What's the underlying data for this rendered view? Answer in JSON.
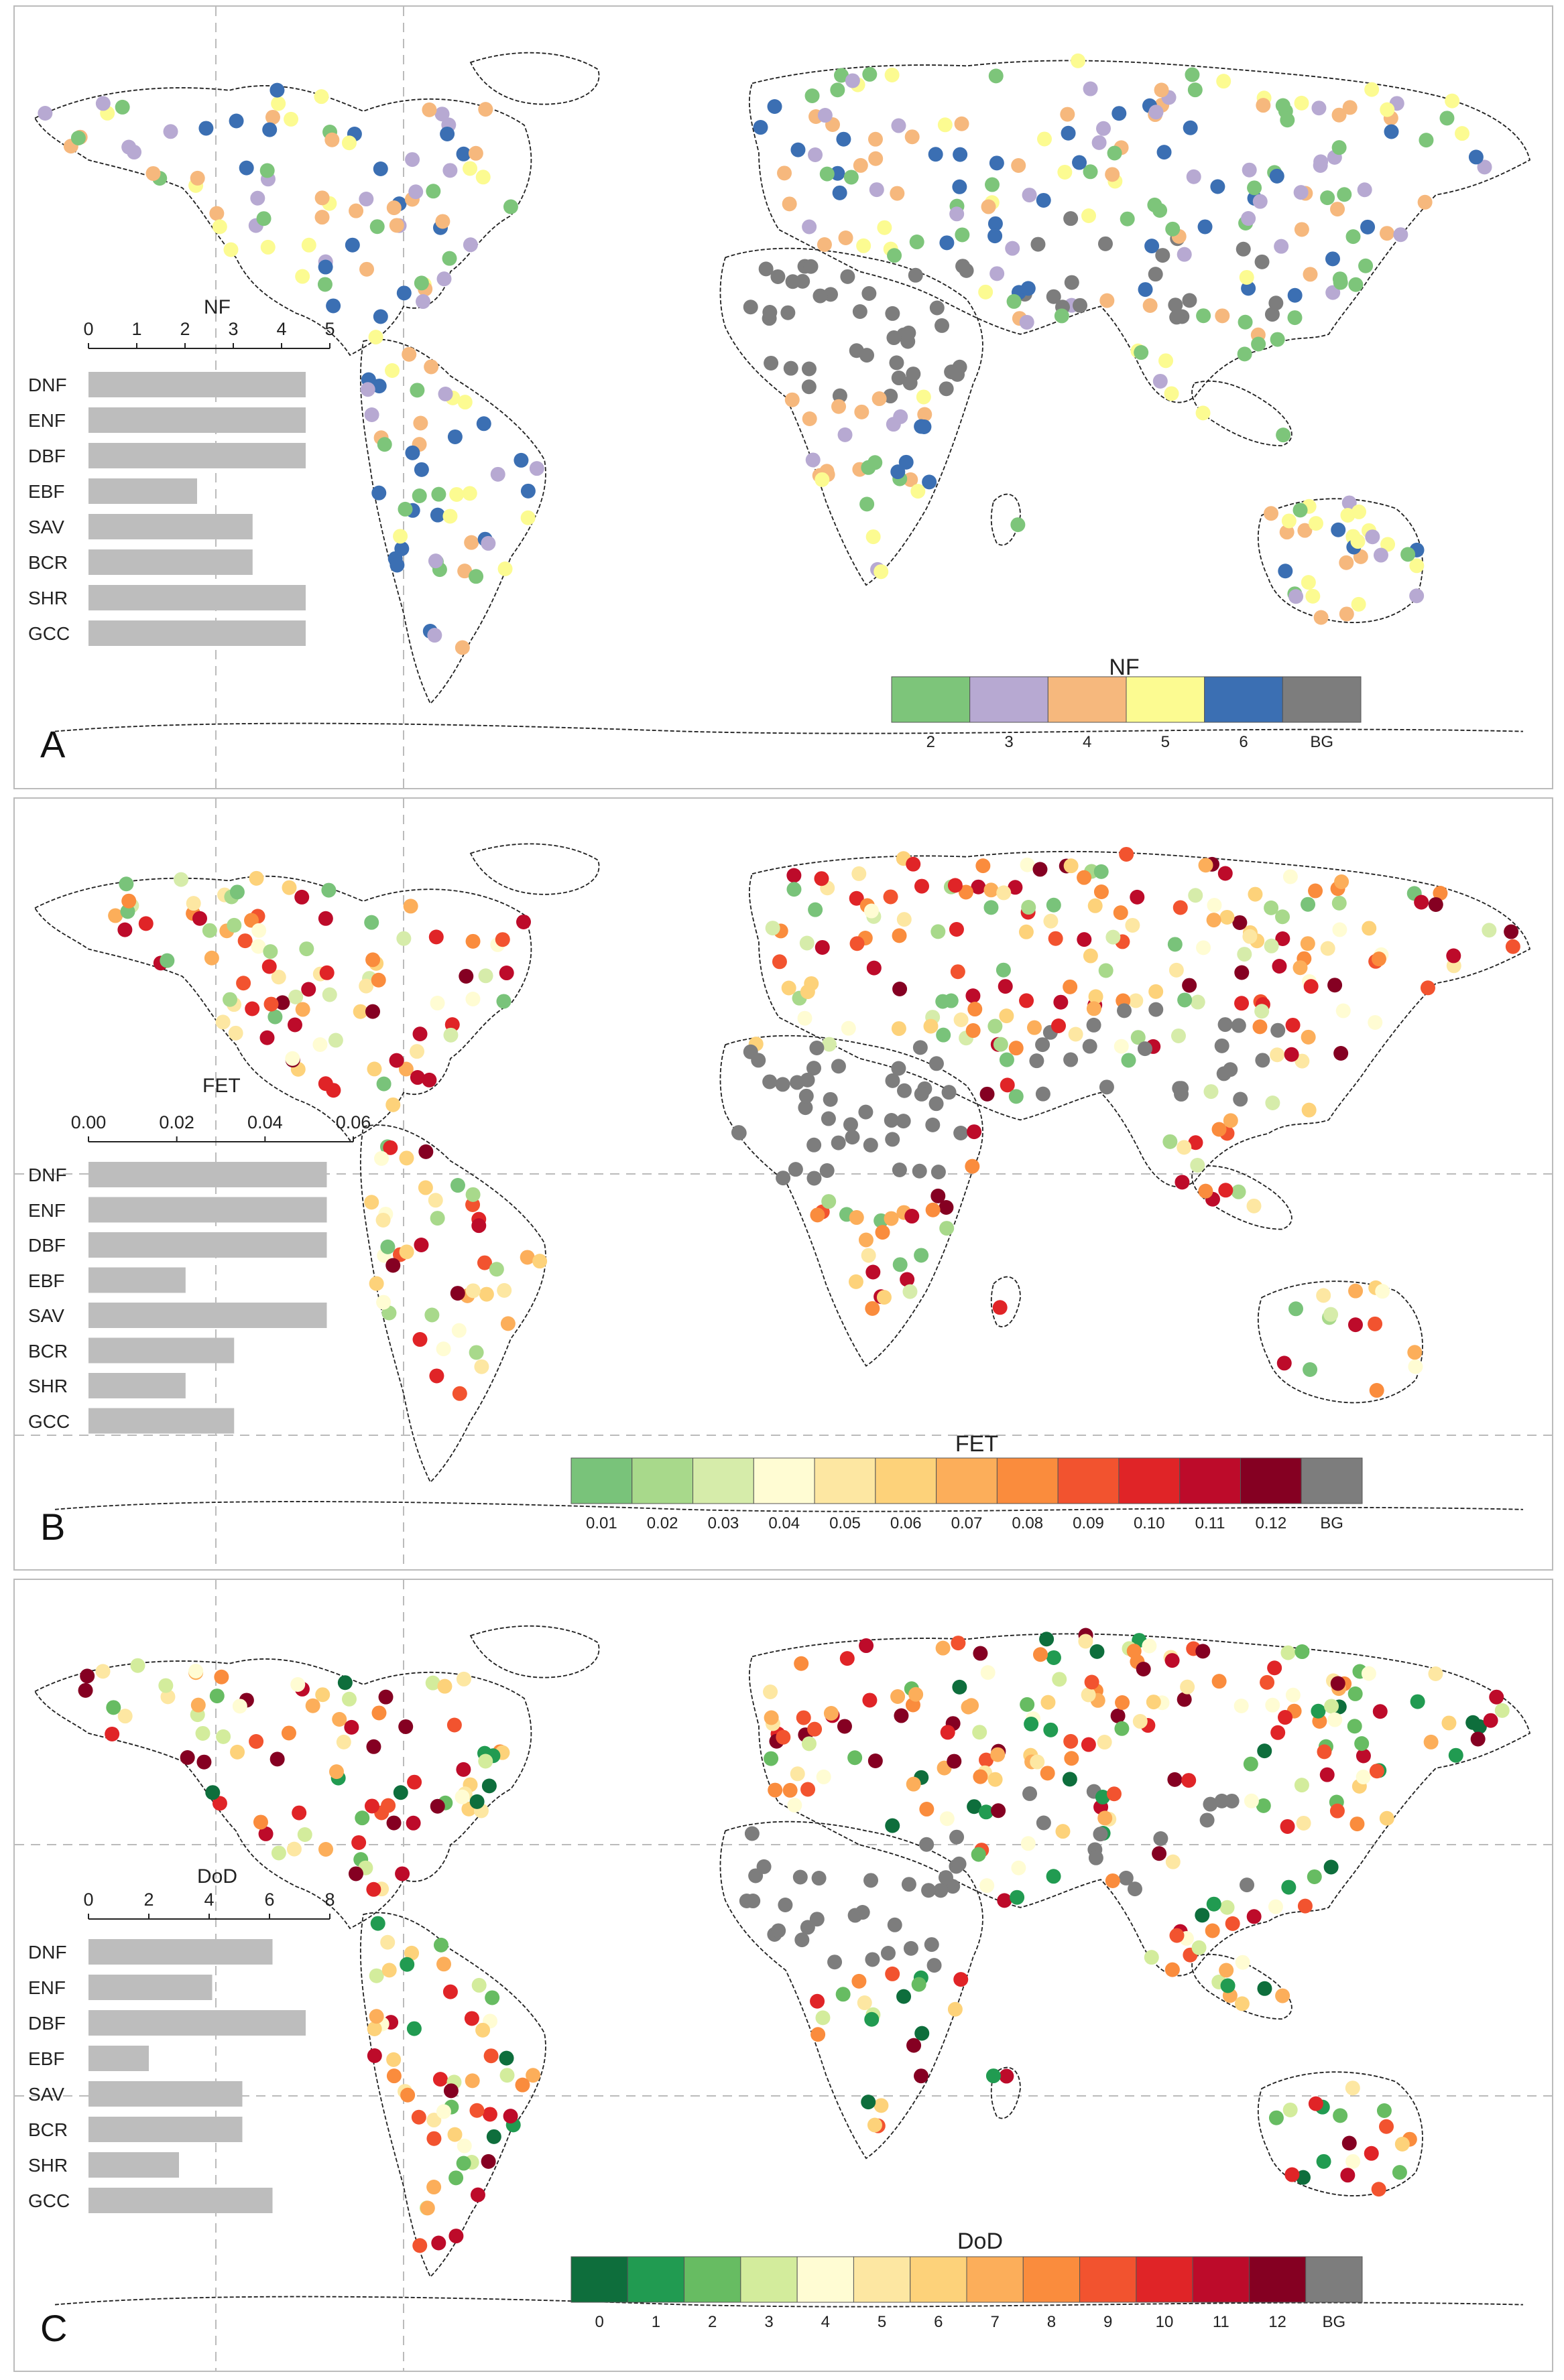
{
  "panels": [
    {
      "letter": "A",
      "bar_chart": {
        "title": "NF",
        "ticks": [
          "0",
          "1",
          "2",
          "3",
          "4",
          "5"
        ],
        "xlim": [
          0,
          5
        ],
        "categories": [
          "DNF",
          "ENF",
          "DBF",
          "EBF",
          "SAV",
          "BCR",
          "SHR",
          "GCC"
        ],
        "values": [
          4.5,
          4.5,
          4.5,
          2.25,
          3.4,
          3.4,
          4.5,
          4.5
        ],
        "bar_color": "#bdbdbd"
      },
      "legend": {
        "title": "NF",
        "items": [
          {
            "label": "2",
            "color": "#7dc57a"
          },
          {
            "label": "3",
            "color": "#b7a9d2"
          },
          {
            "label": "4",
            "color": "#f6b87d"
          },
          {
            "label": "5",
            "color": "#fcfb91"
          },
          {
            "label": "6",
            "color": "#3b6fb3"
          },
          {
            "label": "BG",
            "color": "#7d7d7d"
          }
        ]
      }
    },
    {
      "letter": "B",
      "bar_chart": {
        "title": "FET",
        "ticks": [
          "0.00",
          "0.02",
          "0.04",
          "0.06"
        ],
        "xlim": [
          0,
          0.06
        ],
        "categories": [
          "DNF",
          "ENF",
          "DBF",
          "EBF",
          "SAV",
          "BCR",
          "SHR",
          "GCC"
        ],
        "values": [
          0.054,
          0.054,
          0.054,
          0.022,
          0.054,
          0.033,
          0.022,
          0.033
        ],
        "bar_color": "#bdbdbd"
      },
      "legend": {
        "title": "FET",
        "items": [
          {
            "label": "0.01",
            "color": "#79c37a"
          },
          {
            "label": "0.02",
            "color": "#a8d98b"
          },
          {
            "label": "0.03",
            "color": "#d6ecaa"
          },
          {
            "label": "0.04",
            "color": "#fffcd3"
          },
          {
            "label": "0.05",
            "color": "#fde7a2"
          },
          {
            "label": "0.06",
            "color": "#fdd27a"
          },
          {
            "label": "0.07",
            "color": "#fcae5a"
          },
          {
            "label": "0.08",
            "color": "#fa8c3d"
          },
          {
            "label": "0.09",
            "color": "#f2532f"
          },
          {
            "label": "0.10",
            "color": "#e02427"
          },
          {
            "label": "0.11",
            "color": "#bd0b2a"
          },
          {
            "label": "0.12",
            "color": "#850022"
          },
          {
            "label": "BG",
            "color": "#7d7d7d"
          }
        ]
      }
    },
    {
      "letter": "C",
      "bar_chart": {
        "title": "DoD",
        "ticks": [
          "0",
          "2",
          "4",
          "6",
          "8"
        ],
        "xlim": [
          0,
          8
        ],
        "categories": [
          "DNF",
          "ENF",
          "DBF",
          "EBF",
          "SAV",
          "BCR",
          "SHR",
          "GCC"
        ],
        "values": [
          6.1,
          4.1,
          7.2,
          2.0,
          5.1,
          5.1,
          3.0,
          6.1
        ],
        "bar_color": "#bdbdbd"
      },
      "legend": {
        "title": "DoD",
        "items": [
          {
            "label": "0",
            "color": "#0e6e3c"
          },
          {
            "label": "1",
            "color": "#219b51"
          },
          {
            "label": "2",
            "color": "#67bc62"
          },
          {
            "label": "3",
            "color": "#d3ec9c"
          },
          {
            "label": "4",
            "color": "#fffcd3"
          },
          {
            "label": "5",
            "color": "#fde7a2"
          },
          {
            "label": "6",
            "color": "#fdd27a"
          },
          {
            "label": "7",
            "color": "#fcae5a"
          },
          {
            "label": "8",
            "color": "#fa8c3d"
          },
          {
            "label": "9",
            "color": "#f2532f"
          },
          {
            "label": "10",
            "color": "#e02427"
          },
          {
            "label": "11",
            "color": "#bd0b2a"
          },
          {
            "label": "12",
            "color": "#850022"
          },
          {
            "label": "BG",
            "color": "#7d7d7d"
          }
        ]
      }
    }
  ]
}
